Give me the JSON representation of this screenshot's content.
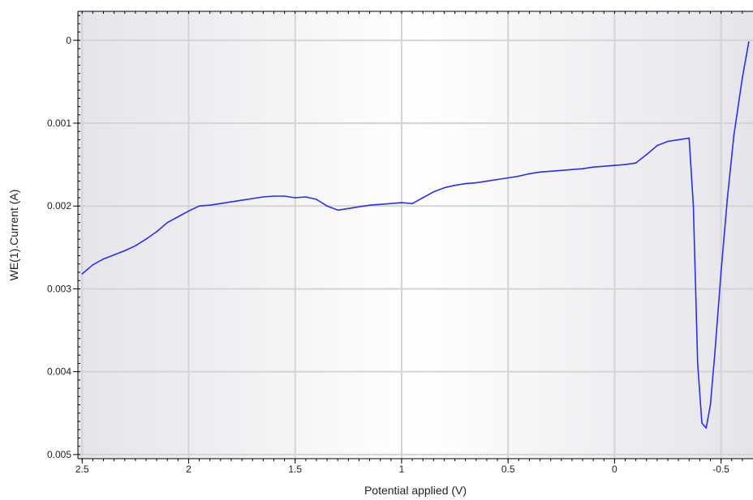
{
  "chart_data": {
    "type": "line",
    "title": "",
    "xlabel": "Potential applied (V)",
    "ylabel": "WE(1).Current (A)",
    "xlim": [
      2.52,
      -0.65
    ],
    "ylim": [
      -0.00035,
      0.00505
    ],
    "x_reversed": true,
    "y_reversed": true,
    "x_ticks": [
      {
        "value": 2.5,
        "label": "2.5"
      },
      {
        "value": 2,
        "label": "2"
      },
      {
        "value": 1.5,
        "label": "1.5"
      },
      {
        "value": 1,
        "label": "1"
      },
      {
        "value": 0.5,
        "label": "0.5"
      },
      {
        "value": 0,
        "label": "0"
      },
      {
        "value": -0.5,
        "label": "-0.5"
      }
    ],
    "y_ticks": [
      {
        "value": 0,
        "label": "0"
      },
      {
        "value": 0.001,
        "label": "0.001"
      },
      {
        "value": 0.002,
        "label": "0.002"
      },
      {
        "value": 0.003,
        "label": "0.003"
      },
      {
        "value": 0.004,
        "label": "0.004"
      },
      {
        "value": 0.005,
        "label": "0.005"
      }
    ],
    "grid": true,
    "series": [
      {
        "color": "#2d2df2",
        "x": [
          2.5,
          2.45,
          2.4,
          2.35,
          2.3,
          2.25,
          2.2,
          2.15,
          2.1,
          2.05,
          2.0,
          1.95,
          1.9,
          1.85,
          1.8,
          1.75,
          1.7,
          1.65,
          1.6,
          1.55,
          1.5,
          1.45,
          1.4,
          1.35,
          1.3,
          1.25,
          1.2,
          1.15,
          1.1,
          1.05,
          1.0,
          0.95,
          0.9,
          0.85,
          0.8,
          0.75,
          0.7,
          0.65,
          0.6,
          0.55,
          0.5,
          0.45,
          0.4,
          0.35,
          0.3,
          0.25,
          0.2,
          0.15,
          0.1,
          0.05,
          0.0,
          -0.05,
          -0.1,
          -0.15,
          -0.2,
          -0.25,
          -0.3,
          -0.35,
          -0.37,
          -0.39,
          -0.41,
          -0.43,
          -0.45,
          -0.47,
          -0.5,
          -0.53,
          -0.56,
          -0.6,
          -0.63
        ],
        "y": [
          0.00282,
          0.00271,
          0.00264,
          0.00259,
          0.00254,
          0.00248,
          0.0024,
          0.00231,
          0.0022,
          0.00213,
          0.00206,
          0.002,
          0.00199,
          0.00197,
          0.00195,
          0.00193,
          0.00191,
          0.00189,
          0.00188,
          0.00188,
          0.0019,
          0.00189,
          0.00192,
          0.002,
          0.00205,
          0.00203,
          0.00201,
          0.00199,
          0.00198,
          0.00197,
          0.00196,
          0.00197,
          0.0019,
          0.00183,
          0.00178,
          0.00175,
          0.00173,
          0.00172,
          0.0017,
          0.00168,
          0.00166,
          0.00164,
          0.00161,
          0.00159,
          0.00158,
          0.00157,
          0.00156,
          0.00155,
          0.00153,
          0.00152,
          0.00151,
          0.0015,
          0.00148,
          0.00138,
          0.00127,
          0.00122,
          0.0012,
          0.00118,
          0.002,
          0.0039,
          0.00462,
          0.00468,
          0.0044,
          0.0038,
          0.0028,
          0.0019,
          0.00115,
          0.00045,
          2e-05
        ]
      }
    ]
  }
}
